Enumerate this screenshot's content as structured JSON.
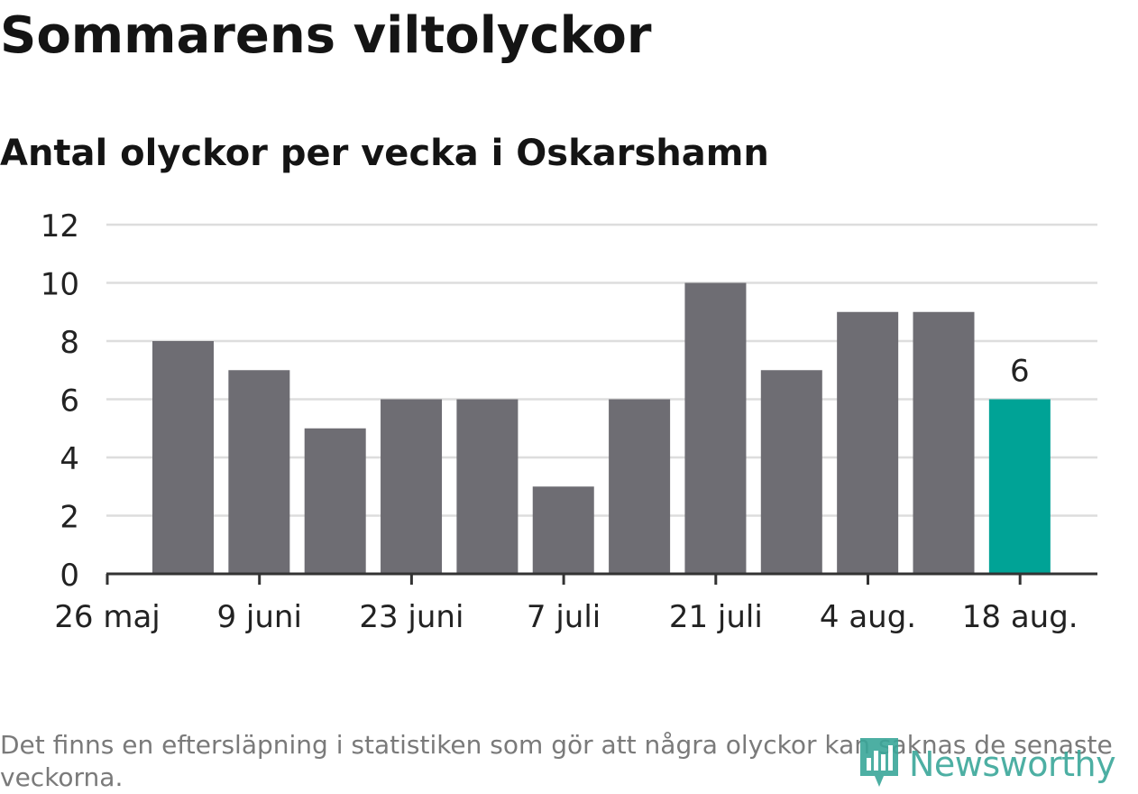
{
  "chart_data": {
    "type": "bar",
    "title": "Sommarens viltolyckor",
    "subtitle": "Antal olyckor per vecka i Oskarshamn",
    "x_tick_labels": [
      "26 maj",
      "9 juni",
      "23 juni",
      "7 juli",
      "21 juli",
      "4 aug.",
      "18 aug."
    ],
    "values": [
      8,
      7,
      5,
      6,
      6,
      3,
      6,
      10,
      7,
      9,
      9,
      6
    ],
    "highlight_index": 11,
    "highlight_label": "6",
    "ylim": [
      0,
      12
    ],
    "yticks": [
      0,
      2,
      4,
      6,
      8,
      10,
      12
    ],
    "grid": true,
    "colors": {
      "bar": "#6e6d73",
      "highlight": "#00a396",
      "grid": "#dddddd",
      "axis": "#333333",
      "text": "#222222"
    }
  },
  "footnote": "Det finns en eftersläpning i statistiken som gör att några olyckor kan saknas de senaste veckorna.",
  "brand": {
    "name": "Newsworthy",
    "icon": "newsworthy-logo-icon",
    "color": "#3aa79a"
  }
}
